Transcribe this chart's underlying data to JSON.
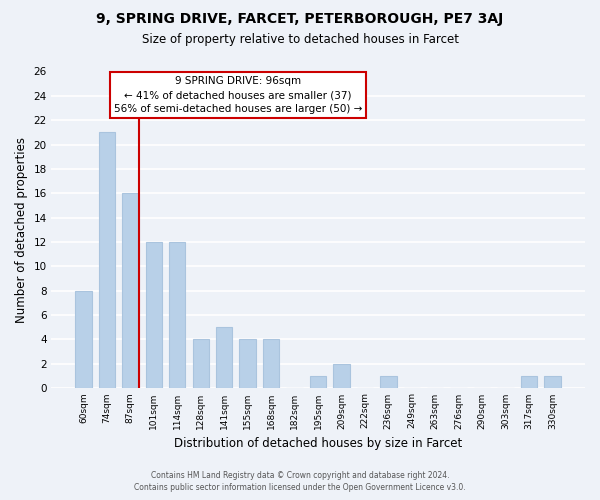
{
  "title_line1": "9, SPRING DRIVE, FARCET, PETERBOROUGH, PE7 3AJ",
  "title_line2": "Size of property relative to detached houses in Farcet",
  "xlabel": "Distribution of detached houses by size in Farcet",
  "ylabel": "Number of detached properties",
  "bar_color": "#b8d0e8",
  "bar_edge_color": "#aac4de",
  "background_color": "#eef2f8",
  "grid_color": "#ffffff",
  "categories": [
    "60sqm",
    "74sqm",
    "87sqm",
    "101sqm",
    "114sqm",
    "128sqm",
    "141sqm",
    "155sqm",
    "168sqm",
    "182sqm",
    "195sqm",
    "209sqm",
    "222sqm",
    "236sqm",
    "249sqm",
    "263sqm",
    "276sqm",
    "290sqm",
    "303sqm",
    "317sqm",
    "330sqm"
  ],
  "values": [
    8,
    21,
    16,
    12,
    12,
    4,
    5,
    4,
    4,
    0,
    1,
    2,
    0,
    1,
    0,
    0,
    0,
    0,
    0,
    1,
    1
  ],
  "ylim": [
    0,
    26
  ],
  "yticks": [
    0,
    2,
    4,
    6,
    8,
    10,
    12,
    14,
    16,
    18,
    20,
    22,
    24,
    26
  ],
  "annotation_line1": "9 SPRING DRIVE: 96sqm",
  "annotation_line2": "← 41% of detached houses are smaller (37)",
  "annotation_line3": "56% of semi-detached houses are larger (50) →",
  "annotation_box_edge": "#cc0000",
  "annotation_box_bg": "#ffffff",
  "vline_color": "#cc0000",
  "footer_line1": "Contains HM Land Registry data © Crown copyright and database right 2024.",
  "footer_line2": "Contains public sector information licensed under the Open Government Licence v3.0."
}
